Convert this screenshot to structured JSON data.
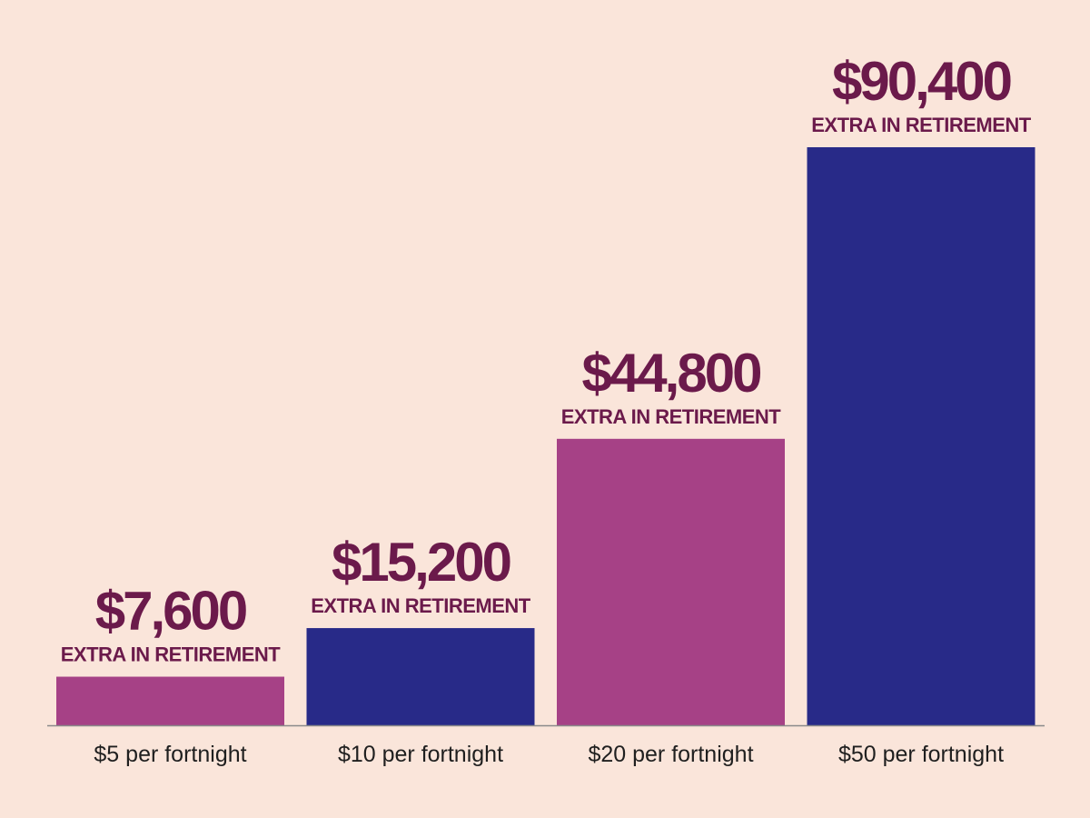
{
  "chart_data": {
    "type": "bar",
    "title": "",
    "xlabel": "",
    "ylabel": "",
    "categories": [
      "$5 per fortnight",
      "$10 per fortnight",
      "$20 per fortnight",
      "$50 per fortnight"
    ],
    "values": [
      7600,
      15200,
      44800,
      90400
    ],
    "value_labels": [
      "$7,600",
      "$15,200",
      "$44,800",
      "$90,400"
    ],
    "value_sublabel": "EXTRA IN RETIREMENT",
    "bar_colors": [
      "#a64186",
      "#282a88",
      "#a64186",
      "#282a88"
    ],
    "label_color": "#6b1a4b",
    "category_label_color": "#1f1f1f",
    "baseline_color": "#8a8a8a",
    "ylim": [
      0,
      90400
    ],
    "grid": false,
    "legend": "none"
  }
}
